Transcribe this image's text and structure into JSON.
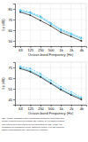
{
  "chart_data": [
    {
      "type": "line",
      "ylabel": "Lp (dB)",
      "xlabel": "Octave-band Frequency (Hz)",
      "x": [
        63,
        125,
        250,
        500,
        1000,
        2000,
        4000
      ],
      "log": "x",
      "xlim": [
        44.1,
        5600
      ],
      "xticks": [
        63,
        125,
        250,
        500,
        {
          "value": 1000,
          "label": "1k"
        },
        {
          "value": 2000,
          "label": "2k"
        },
        {
          "value": 4000,
          "label": "4k"
        }
      ],
      "ylim": [
        45,
        85
      ],
      "yticks": [
        50,
        60,
        70,
        80
      ],
      "grid": true,
      "series": [
        {
          "color": "#4FC3F7",
          "line_style": "solid",
          "marker": "circle",
          "values": [
            78,
            76,
            72,
            66,
            60,
            56,
            52
          ]
        },
        {
          "color": "#4FC3F7",
          "line_style": "dashed",
          "marker": "circle",
          "values": [
            79,
            77,
            73,
            67,
            61,
            57,
            53
          ]
        },
        {
          "color": "#303030",
          "line_style": "solid",
          "marker": "circle",
          "values": [
            77,
            74,
            69,
            64,
            58,
            54,
            50
          ]
        }
      ]
    },
    {
      "type": "line",
      "ylabel": "Lp (dB)",
      "xlabel": "Octave-band Frequency (Hz)",
      "x": [
        63,
        125,
        250,
        500,
        1000,
        2000,
        4000
      ],
      "log": "x",
      "xlim": [
        44.1,
        5600
      ],
      "xticks": [
        63,
        125,
        250,
        500,
        {
          "value": 1000,
          "label": "1k"
        },
        {
          "value": 2000,
          "label": "2k"
        },
        {
          "value": 4000,
          "label": "4k"
        }
      ],
      "ylim": [
        40,
        80
      ],
      "yticks": [
        45,
        55,
        65,
        75
      ],
      "grid": true,
      "series": [
        {
          "color": "#4FC3F7",
          "line_style": "solid",
          "marker": "circle",
          "values": [
            75,
            72,
            67,
            61,
            55,
            50,
            46
          ]
        },
        {
          "color": "#4FC3F7",
          "line_style": "dashed",
          "marker": "circle",
          "values": [
            76,
            74,
            69,
            63,
            57,
            52,
            47
          ]
        },
        {
          "color": "#303030",
          "line_style": "solid",
          "marker": "circle",
          "values": [
            74,
            71,
            66,
            60,
            54,
            49,
            45
          ]
        }
      ],
      "caption": "SEA validity consists of the comparison between input (total and\nmodal) powers received outside the vehicle by elevated persons.\nThe curves give the output levels calculated by SEA in the car,\ncompared to measured levels. Different colors: 1 for the second-\nstage compartment (top) and first floor (bottom)."
    }
  ]
}
